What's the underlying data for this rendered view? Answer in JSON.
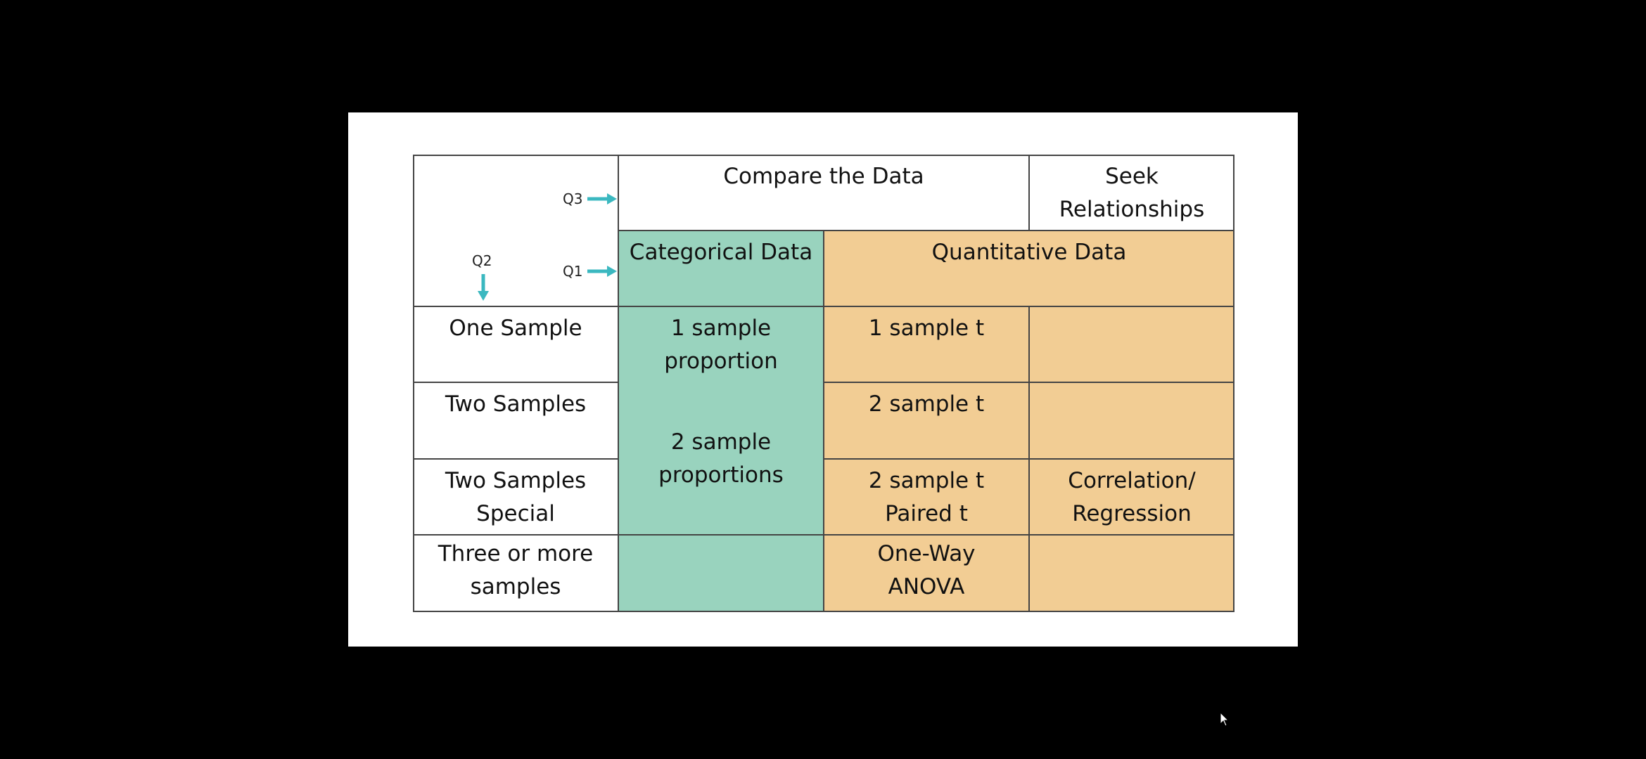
{
  "colors": {
    "teal": "#99D3BE",
    "orange": "#F2CD94",
    "arrow": "#3BB8C0",
    "border": "#444444"
  },
  "question_labels": {
    "q1": "Q1",
    "q2": "Q2",
    "q3": "Q3"
  },
  "header": {
    "compare": "Compare the Data",
    "seek": [
      "Seek",
      "Relationships"
    ],
    "categorical": "Categorical Data",
    "quantitative": "Quantitative Data"
  },
  "rows": {
    "one_sample": {
      "label": [
        "One Sample"
      ],
      "categorical": [
        "1 sample",
        "proportion"
      ],
      "quantitative": [
        "1 sample t"
      ],
      "relationships": []
    },
    "two_samples": {
      "label": [
        "Two Samples"
      ],
      "quantitative": [
        "2 sample t"
      ],
      "relationships": []
    },
    "two_samples_special": {
      "label": [
        "Two Samples",
        "Special"
      ],
      "quantitative": [
        "2 sample t",
        "Paired t"
      ],
      "relationships": [
        "Correlation/",
        "Regression"
      ]
    },
    "three_or_more": {
      "label": [
        "Three or more",
        "samples"
      ],
      "categorical": [],
      "quantitative": [
        "One-Way",
        "ANOVA"
      ],
      "relationships": []
    },
    "two_sample_categorical_merged": [
      "2 sample",
      "proportions"
    ]
  },
  "icons": {
    "arrow_right": "arrow-right-icon",
    "arrow_down": "arrow-down-icon",
    "cursor": "mouse-cursor-icon"
  }
}
